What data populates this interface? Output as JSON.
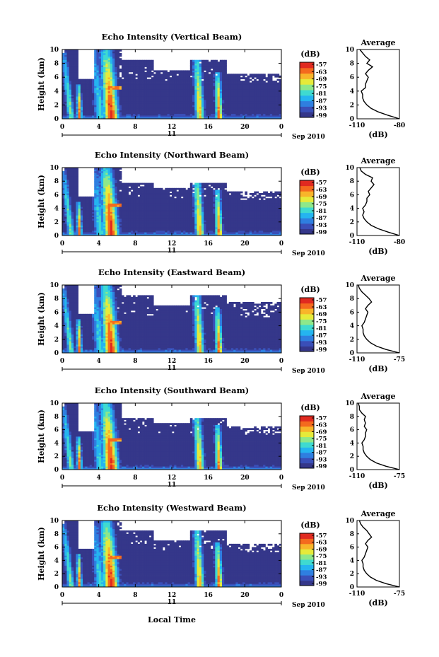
{
  "figure": {
    "date_label": "11",
    "month_label": "Sep 2010",
    "xlabel": "Local Time",
    "ylabel": "Height (km)",
    "avg_title": "Average",
    "avg_xlabel": "(dB)",
    "cb_label": "(dB)"
  },
  "colors": {
    "background": "#35378a",
    "scale": [
      "#35378a",
      "#3a4fb8",
      "#2f7fe0",
      "#25b4f0",
      "#3fdad0",
      "#8ee88a",
      "#e6ea3a",
      "#f8b52a",
      "#f46a1e",
      "#e02a20"
    ]
  },
  "chart_data": [
    {
      "type": "heatmap",
      "title": "Echo Intensity (Vertical Beam)",
      "xlabel": "Local Time",
      "ylabel": "Height (km)",
      "xlim": [
        0,
        24
      ],
      "ylim": [
        0,
        10
      ],
      "xticks": [
        "0",
        "4",
        "8",
        "12",
        "16",
        "20",
        "0"
      ],
      "yticks": [
        "0",
        "2",
        "4",
        "6",
        "8",
        "10"
      ],
      "colorbar": {
        "label": "(dB)",
        "ticks": [
          "-57",
          "-63",
          "-69",
          "-75",
          "-81",
          "-87",
          "-93",
          "-99"
        ],
        "range": [
          -99,
          -57
        ]
      },
      "average": {
        "title": "Average",
        "xlabel": "(dB)",
        "xticks": [
          "-110",
          "-80"
        ],
        "xlim": [
          -110,
          -80
        ],
        "height": [
          0,
          0.5,
          1,
          1.5,
          2,
          2.5,
          3,
          3.5,
          4,
          4.5,
          5,
          5.5,
          6,
          6.5,
          7,
          7.5,
          8,
          8.5,
          9,
          9.5,
          10
        ],
        "db": [
          -80,
          -88,
          -95,
          -100,
          -103,
          -105,
          -106,
          -106,
          -107,
          -104,
          -104,
          -103,
          -102,
          -104,
          -102,
          -99,
          -103,
          -101,
          -104,
          -106,
          -108
        ]
      }
    },
    {
      "type": "heatmap",
      "title": "Echo Intensity (Northward Beam)",
      "xlabel": "Local Time",
      "ylabel": "Height (km)",
      "xlim": [
        0,
        24
      ],
      "ylim": [
        0,
        10
      ],
      "xticks": [
        "0",
        "4",
        "8",
        "12",
        "16",
        "20",
        "0"
      ],
      "yticks": [
        "0",
        "2",
        "4",
        "6",
        "8",
        "10"
      ],
      "colorbar": {
        "label": "(dB)",
        "ticks": [
          "-57",
          "-63",
          "-69",
          "-75",
          "-81",
          "-87",
          "-93",
          "-99"
        ],
        "range": [
          -99,
          -57
        ]
      },
      "average": {
        "title": "Average",
        "xlabel": "(dB)",
        "xticks": [
          "-110",
          "-80"
        ],
        "xlim": [
          -110,
          -80
        ],
        "height": [
          0,
          0.5,
          1,
          1.5,
          2,
          2.5,
          3,
          3.5,
          4,
          4.5,
          5,
          5.5,
          6,
          6.5,
          7,
          7.5,
          8,
          8.5,
          9,
          9.5,
          10
        ],
        "db": [
          -80,
          -88,
          -95,
          -100,
          -103,
          -105,
          -106,
          -105,
          -106,
          -104,
          -103,
          -103,
          -101,
          -102,
          -100,
          -98,
          -100,
          -99,
          -104,
          -107,
          -108
        ]
      }
    },
    {
      "type": "heatmap",
      "title": "Echo Intensity (Eastward Beam)",
      "xlabel": "Local Time",
      "ylabel": "Height (km)",
      "xlim": [
        0,
        24
      ],
      "ylim": [
        0,
        10
      ],
      "xticks": [
        "0",
        "4",
        "8",
        "12",
        "16",
        "20",
        "0"
      ],
      "yticks": [
        "0",
        "2",
        "4",
        "6",
        "8",
        "10"
      ],
      "colorbar": {
        "label": "(dB)",
        "ticks": [
          "-57",
          "-63",
          "-69",
          "-75",
          "-81",
          "-87",
          "-93",
          "-99"
        ],
        "range": [
          -99,
          -57
        ]
      },
      "average": {
        "title": "Average",
        "xlabel": "(dB)",
        "xticks": [
          "-110",
          "-75"
        ],
        "xlim": [
          -110,
          -75
        ],
        "height": [
          0,
          0.5,
          1,
          1.5,
          2,
          2.5,
          3,
          3.5,
          4,
          4.5,
          5,
          5.5,
          6,
          6.5,
          7,
          7.5,
          8,
          8.5,
          9,
          9.5,
          10
        ],
        "db": [
          -75,
          -86,
          -94,
          -99,
          -102,
          -104,
          -105,
          -105,
          -106,
          -104,
          -103,
          -102,
          -101,
          -103,
          -101,
          -98,
          -100,
          -103,
          -106,
          -108,
          -109
        ]
      }
    },
    {
      "type": "heatmap",
      "title": "Echo Intensity (Southward Beam)",
      "xlabel": "Local Time",
      "ylabel": "Height (km)",
      "xlim": [
        0,
        24
      ],
      "ylim": [
        0,
        10
      ],
      "xticks": [
        "0",
        "4",
        "8",
        "12",
        "16",
        "20",
        "0"
      ],
      "yticks": [
        "0",
        "2",
        "4",
        "6",
        "8",
        "10"
      ],
      "colorbar": {
        "label": "(dB)",
        "ticks": [
          "-57",
          "-63",
          "-69",
          "-75",
          "-81",
          "-87",
          "-93",
          "-99"
        ],
        "range": [
          -99,
          -57
        ]
      },
      "average": {
        "title": "Average",
        "xlabel": "(dB)",
        "xticks": [
          "-110",
          "-75"
        ],
        "xlim": [
          -110,
          -75
        ],
        "height": [
          0,
          0.5,
          1,
          1.5,
          2,
          2.5,
          3,
          3.5,
          4,
          4.5,
          5,
          5.5,
          6,
          6.5,
          7,
          7.5,
          8,
          8.5,
          9,
          9.5,
          10
        ],
        "db": [
          -75,
          -86,
          -94,
          -99,
          -102,
          -104,
          -105,
          -105,
          -106,
          -104,
          -103,
          -103,
          -102,
          -104,
          -103,
          -104,
          -103,
          -106,
          -108,
          -108,
          -109
        ]
      }
    },
    {
      "type": "heatmap",
      "title": "Echo Intensity (Westward Beam)",
      "xlabel": "Local Time",
      "ylabel": "Height (km)",
      "xlim": [
        0,
        24
      ],
      "ylim": [
        0,
        10
      ],
      "xticks": [
        "0",
        "4",
        "8",
        "12",
        "16",
        "20",
        "0"
      ],
      "yticks": [
        "0",
        "2",
        "4",
        "6",
        "8",
        "10"
      ],
      "colorbar": {
        "label": "(dB)",
        "ticks": [
          "-57",
          "-63",
          "-69",
          "-75",
          "-81",
          "-87",
          "-93",
          "-99"
        ],
        "range": [
          -99,
          -57
        ]
      },
      "average": {
        "title": "Average",
        "xlabel": "(dB)",
        "xticks": [
          "-110",
          "-75"
        ],
        "xlim": [
          -110,
          -75
        ],
        "height": [
          0,
          0.5,
          1,
          1.5,
          2,
          2.5,
          3,
          3.5,
          4,
          4.5,
          5,
          5.5,
          6,
          6.5,
          7,
          7.5,
          8,
          8.5,
          9,
          9.5,
          10
        ],
        "db": [
          -75,
          -86,
          -94,
          -99,
          -102,
          -104,
          -105,
          -105,
          -106,
          -104,
          -103,
          -102,
          -101,
          -103,
          -101,
          -98,
          -100,
          -102,
          -105,
          -107,
          -108
        ]
      }
    }
  ]
}
